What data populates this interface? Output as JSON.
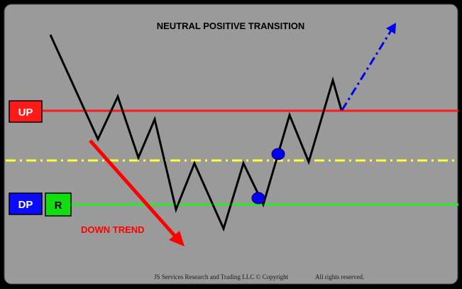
{
  "title": "NEUTRAL POSITIVE TRANSITION",
  "labels": {
    "up": "UP",
    "dp": "DP",
    "r": "R",
    "down_trend": "DOWN TREND"
  },
  "footer": {
    "left": "JS Services Research and Trading LLC © Copyright",
    "right": "All rights reserved."
  },
  "colors": {
    "background": "#9a9a9a",
    "frame": "#000000",
    "up_line": "#ff1a1a",
    "mid_line": "#ffff33",
    "dp_line": "#22ee22",
    "up_box": "#ff1a1a",
    "dp_box": "#0a0aff",
    "r_box": "#11dd11",
    "price_line": "#000000",
    "down_arrow": "#ff0000",
    "projection_arrow": "#0000ee",
    "marker": "#0000ee"
  },
  "icons": {
    "down_arrow": "arrow-down-right-icon",
    "projection_arrow": "arrow-up-right-dashed-icon",
    "markers": "circle-marker-icon"
  }
}
